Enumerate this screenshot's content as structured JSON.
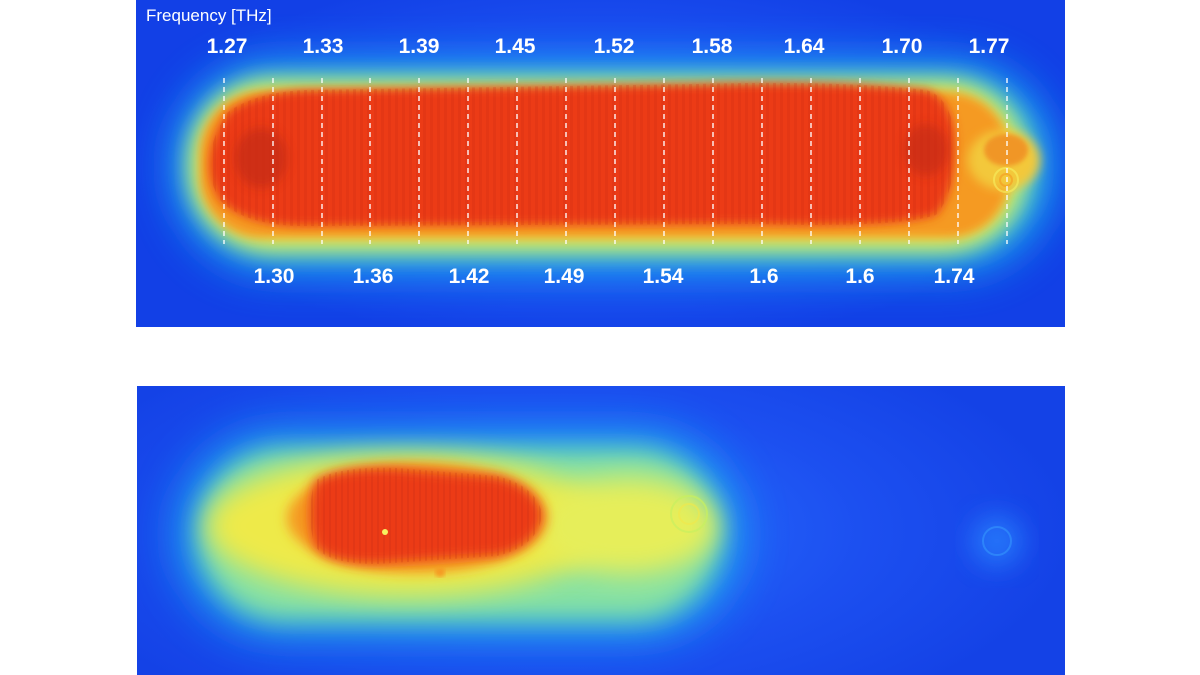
{
  "figure": {
    "top_panel": {
      "axis_label": "Frequency [THz]",
      "top_row_labels": [
        "1.27",
        "1.33",
        "1.39",
        "1.45",
        "1.52",
        "1.58",
        "1.64",
        "1.70",
        "1.77"
      ],
      "bottom_row_labels": [
        "1.30",
        "1.36",
        "1.42",
        "1.49",
        "1.54",
        "1.6",
        "1.6",
        "1.74"
      ]
    },
    "bottom_panel": {},
    "colormap": [
      "#1340e6",
      "#1d5cf5",
      "#1fb4f5",
      "#6fe0b0",
      "#f2f04a",
      "#f5a020",
      "#ef3a1a"
    ]
  }
}
